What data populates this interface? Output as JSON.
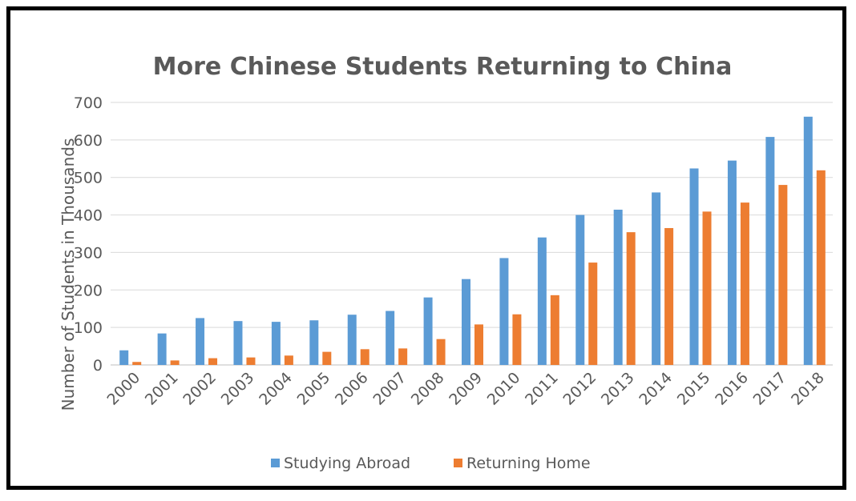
{
  "chart_data": {
    "type": "bar",
    "title": "More Chinese Students Returning to China",
    "ylabel": "Number of Students in Thousands",
    "xlabel": "",
    "ylim": [
      0,
      700
    ],
    "yticks": [
      "0",
      "100",
      "200",
      "300",
      "400",
      "500",
      "600",
      "700"
    ],
    "grid": true,
    "legend_position": "bottom",
    "categories": [
      "2000",
      "2001",
      "2002",
      "2003",
      "2004",
      "2005",
      "2006",
      "2007",
      "2008",
      "2009",
      "2010",
      "2011",
      "2012",
      "2013",
      "2014",
      "2015",
      "2016",
      "2017",
      "2018"
    ],
    "series": [
      {
        "name": "Studying Abroad",
        "color": "#5B9BD5",
        "values": [
          39,
          84,
          125,
          117,
          115,
          119,
          134,
          144,
          180,
          229,
          285,
          340,
          400,
          414,
          460,
          524,
          545,
          608,
          662
        ]
      },
      {
        "name": "Returning Home",
        "color": "#ED7D31",
        "values": [
          8,
          12,
          18,
          20,
          25,
          35,
          42,
          44,
          69,
          108,
          135,
          186,
          273,
          354,
          365,
          409,
          433,
          480,
          519
        ]
      }
    ]
  }
}
